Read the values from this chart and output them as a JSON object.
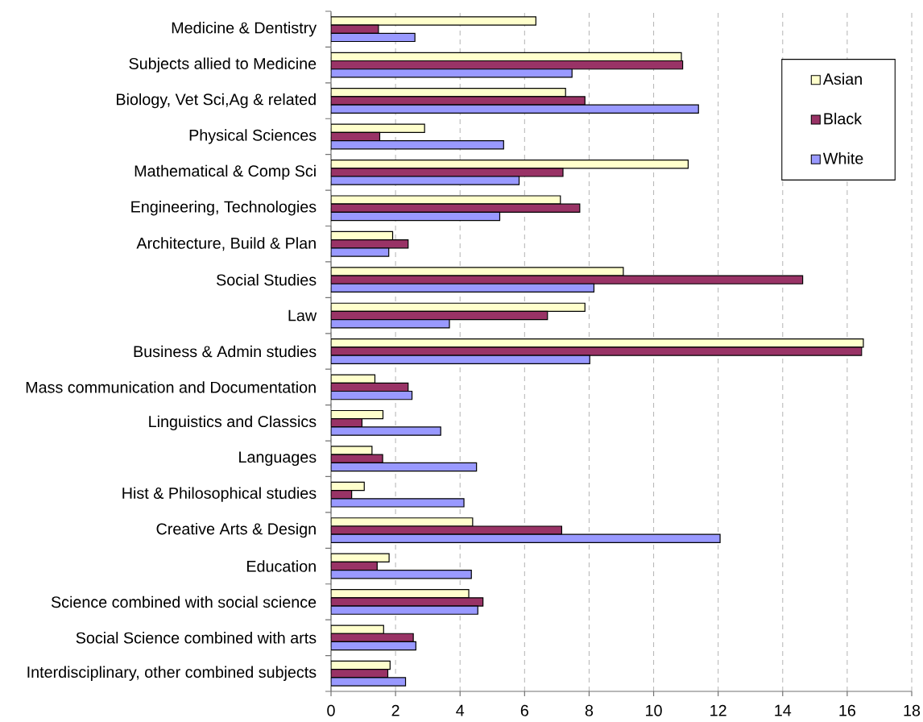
{
  "chart_data": {
    "type": "bar",
    "orientation": "horizontal",
    "categories": [
      "Medicine & Dentistry",
      "Subjects allied to Medicine",
      "Biology, Vet Sci,Ag & related",
      "Physical Sciences",
      "Mathematical & Comp Sci",
      "Engineering, Technologies",
      "Architecture, Build & Plan",
      "Social Studies",
      "Law",
      "Business & Admin studies",
      "Mass communication and Documentation",
      "Linguistics and Classics",
      "Languages",
      "Hist & Philosophical studies",
      "Creative Arts & Design",
      "Education",
      "Science combined with social science",
      "Social Science combined with arts",
      "Interdisciplinary, other combined subjects"
    ],
    "series": [
      {
        "name": "Asian",
        "color": "#ffffcc",
        "values": [
          6.35,
          10.86,
          7.27,
          2.9,
          11.07,
          7.11,
          1.91,
          9.06,
          7.87,
          16.5,
          1.36,
          1.61,
          1.27,
          1.03,
          4.39,
          1.8,
          4.27,
          1.63,
          1.83
        ]
      },
      {
        "name": "Black",
        "color": "#993366",
        "values": [
          1.47,
          10.9,
          7.87,
          1.51,
          7.19,
          7.71,
          2.39,
          14.62,
          6.71,
          16.45,
          2.39,
          0.96,
          1.6,
          0.64,
          7.15,
          1.43,
          4.71,
          2.55,
          1.76
        ]
      },
      {
        "name": "White",
        "color": "#9999ff",
        "values": [
          2.6,
          7.47,
          11.39,
          5.35,
          5.83,
          5.23,
          1.79,
          8.15,
          3.67,
          8.02,
          2.51,
          3.4,
          4.51,
          4.12,
          12.06,
          4.35,
          4.55,
          2.63,
          2.31
        ]
      }
    ],
    "xlim": [
      0,
      18
    ],
    "xticks": [
      0,
      2,
      4,
      6,
      8,
      10,
      12,
      14,
      16,
      18
    ],
    "grid": "x",
    "legend": "top right"
  }
}
